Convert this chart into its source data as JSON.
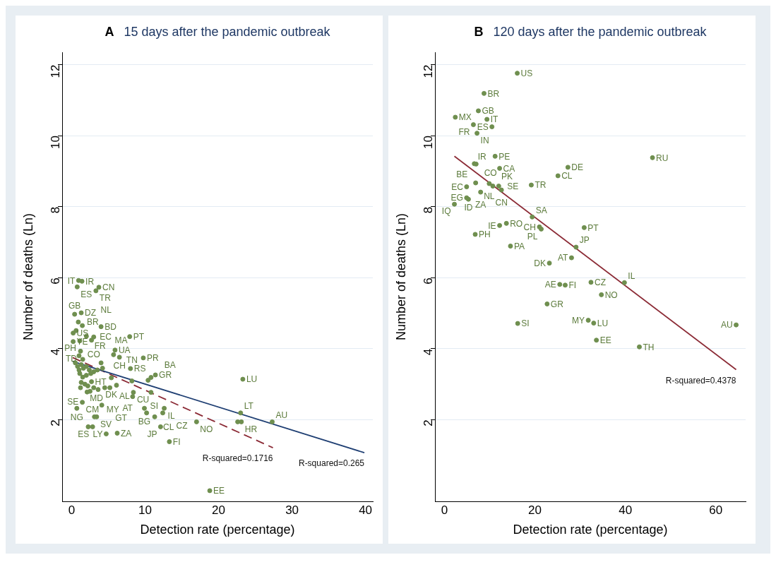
{
  "chart_data": [
    {
      "type": "scatter",
      "title": "15 days after the pandemic outbreak",
      "xlabel": "Detection rate (percentage)",
      "ylabel": "Number of deaths (Ln)",
      "xlim": [
        -1.3,
        41
      ],
      "ylim": [
        -0.3,
        12.35
      ],
      "xticks": [
        0,
        10,
        20,
        30,
        40
      ],
      "yticks": [
        2,
        4,
        6,
        8,
        10,
        12
      ],
      "grid": "y",
      "legend": false,
      "series": [
        {
          "type": "scatter",
          "color": "#6f8f4f",
          "marker": "circle",
          "x": [
            0.94,
            1.4,
            0.75,
            3.7,
            3.3,
            1.3,
            0.4,
            0.9,
            1.45,
            4.0,
            0.6,
            0.2,
            2.0,
            3.0,
            2.7,
            0.2,
            1.1,
            7.9,
            5.9,
            5.7,
            6.5,
            9.75,
            1.2,
            8.0,
            5.4,
            8.2,
            11.4,
            10.8,
            10.4,
            23.3,
            2.7,
            6.1,
            8.4,
            10.8,
            8.3,
            2.1,
            1.45,
            0.7,
            4.1,
            9.9,
            12.6,
            10.2,
            12.4,
            11.3,
            23.0,
            17.0,
            22.6,
            23.1,
            27.3,
            3.1,
            3.4,
            2.25,
            2.85,
            12.1,
            4.7,
            6.2,
            13.3,
            18.8,
            0.5,
            0.8,
            1.0,
            1.3,
            1.6,
            2.0,
            2.4,
            1.1,
            1.5,
            2.0,
            2.6,
            3.0,
            3.5,
            4.2,
            1.3,
            1.8,
            2.2,
            3.0,
            3.6,
            4.5,
            5.2,
            1.5,
            1.0,
            2.5,
            4.0,
            1.2
          ],
          "values": [
            5.92,
            5.9,
            5.74,
            5.73,
            5.63,
            5.01,
            4.97,
            4.75,
            4.65,
            4.62,
            4.51,
            4.44,
            4.35,
            4.33,
            4.24,
            4.2,
            4.22,
            4.34,
            3.96,
            3.83,
            3.76,
            3.74,
            3.93,
            3.44,
            3.18,
            3.09,
            3.26,
            3.19,
            3.11,
            3.14,
            3.07,
            2.97,
            2.77,
            2.77,
            2.65,
            2.78,
            2.49,
            2.32,
            2.41,
            2.32,
            2.32,
            2.19,
            2.19,
            2.08,
            2.19,
            1.94,
            1.94,
            1.94,
            1.94,
            2.08,
            2.08,
            1.8,
            1.8,
            1.8,
            1.6,
            1.62,
            1.38,
            0.0,
            3.6,
            3.5,
            3.4,
            3.55,
            3.45,
            3.5,
            3.4,
            3.3,
            3.2,
            3.25,
            3.3,
            3.35,
            3.4,
            3.45,
            3.05,
            3.0,
            2.95,
            2.9,
            2.85,
            2.9,
            2.9,
            3.7,
            3.8,
            2.8,
            3.6,
            2.9
          ]
        },
        {
          "type": "line",
          "color": "#1f3f73",
          "marker": "none",
          "line_style": "solid",
          "x": [
            0.14,
            39.85
          ],
          "values": [
            3.64,
            1.07
          ]
        },
        {
          "type": "line",
          "color": "#8b2a35",
          "marker": "none",
          "line_style": "dashed",
          "x": [
            0.14,
            27.4
          ],
          "values": [
            3.75,
            1.21
          ]
        }
      ],
      "annotations": [
        "A",
        {
          "text": "IT",
          "x": 0.94,
          "y": 5.92
        },
        {
          "text": "IR",
          "x": 1.4,
          "y": 5.9
        },
        {
          "text": "ES",
          "x": 0.75,
          "y": 5.74
        },
        {
          "text": "CN",
          "x": 3.7,
          "y": 5.73
        },
        {
          "text": "TR",
          "x": 3.3,
          "y": 5.63
        },
        {
          "text": "DZ",
          "x": 1.3,
          "y": 5.01
        },
        {
          "text": "GB",
          "x": 0.4,
          "y": 4.97
        },
        {
          "text": "BR",
          "x": 0.9,
          "y": 4.75
        },
        {
          "text": "NL",
          "x": 1.45,
          "y": 4.65
        },
        {
          "text": "BD",
          "x": 4.0,
          "y": 4.62
        },
        {
          "text": "FR",
          "x": 0.6,
          "y": 4.51
        },
        {
          "text": "US",
          "x": 0.2,
          "y": 4.44
        },
        {
          "text": "EC",
          "x": 2.0,
          "y": 4.35
        },
        {
          "text": "CO",
          "x": 3.0,
          "y": 4.33
        },
        {
          "text": "MA",
          "x": 2.7,
          "y": 4.24
        },
        {
          "text": "YE",
          "x": 0.2,
          "y": 4.2
        },
        {
          "text": "PH",
          "x": 1.1,
          "y": 4.22
        },
        {
          "text": "PT",
          "x": 7.9,
          "y": 4.34
        },
        {
          "text": "UA",
          "x": 5.9,
          "y": 3.96
        },
        {
          "text": "CH",
          "x": 6.5,
          "y": 3.76
        },
        {
          "text": "PR",
          "x": 9.75,
          "y": 3.74
        },
        {
          "text": "TD",
          "x": 1.2,
          "y": 3.93
        },
        {
          "text": "RS",
          "x": 8.0,
          "y": 3.44
        },
        {
          "text": "DK",
          "x": 5.4,
          "y": 3.18
        },
        {
          "text": "TN",
          "x": 8.2,
          "y": 3.09
        },
        {
          "text": "GR",
          "x": 11.4,
          "y": 3.26
        },
        {
          "text": "BA",
          "x": 10.8,
          "y": 3.19
        },
        {
          "text": "AL",
          "x": 10.4,
          "y": 3.11
        },
        {
          "text": "LU",
          "x": 23.3,
          "y": 3.14
        },
        {
          "text": "HT",
          "x": 2.7,
          "y": 3.07
        },
        {
          "text": "MD",
          "x": 6.1,
          "y": 2.97
        },
        {
          "text": "CU",
          "x": 8.4,
          "y": 2.77
        },
        {
          "text": "AT",
          "x": 10.8,
          "y": 2.77
        },
        {
          "text": "MY",
          "x": 8.3,
          "y": 2.65
        },
        {
          "text": "SE",
          "x": 2.1,
          "y": 2.78
        },
        {
          "text": "CM",
          "x": 1.45,
          "y": 2.49
        },
        {
          "text": "NG",
          "x": 0.7,
          "y": 2.32
        },
        {
          "text": "GT",
          "x": 4.1,
          "y": 2.41
        },
        {
          "text": "BG",
          "x": 9.9,
          "y": 2.32
        },
        {
          "text": "IL",
          "x": 12.6,
          "y": 2.32
        },
        {
          "text": "SI",
          "x": 10.2,
          "y": 2.19
        },
        {
          "text": "CZ",
          "x": 12.4,
          "y": 2.19
        },
        {
          "text": "CL",
          "x": 11.3,
          "y": 2.08
        },
        {
          "text": "LT",
          "x": 23.0,
          "y": 2.19
        },
        {
          "text": "NO",
          "x": 17.0,
          "y": 1.94
        },
        {
          "text": "HR",
          "x": 23.1,
          "y": 1.94
        },
        {
          "text": "AU",
          "x": 27.3,
          "y": 1.94
        },
        {
          "text": "SV",
          "x": 3.4,
          "y": 2.08
        },
        {
          "text": "ES",
          "x": 2.85,
          "y": 1.8
        },
        {
          "text": "JP",
          "x": 12.1,
          "y": 1.8
        },
        {
          "text": "LY",
          "x": 4.7,
          "y": 1.6
        },
        {
          "text": "ZA",
          "x": 6.2,
          "y": 1.62
        },
        {
          "text": "FI",
          "x": 13.3,
          "y": 1.38
        },
        {
          "text": "EE",
          "x": 18.8,
          "y": 0.0
        },
        {
          "text": "R-squared=0.1716",
          "x": 27.4,
          "y": 1.21
        },
        {
          "text": "R-squared=0.265",
          "x": 39.85,
          "y": 1.07
        }
      ]
    },
    {
      "type": "scatter",
      "title": "120 days after the pandemic outbreak",
      "xlabel": "Detection rate (percentage)",
      "ylabel": "Number of deaths (Ln)",
      "xlim": [
        -2.1,
        66.6
      ],
      "ylim": [
        -0.3,
        12.35
      ],
      "xticks": [
        0,
        20,
        40,
        60
      ],
      "yticks": [
        2,
        4,
        6,
        8,
        10,
        12
      ],
      "grid": "y",
      "legend": false,
      "series": [
        {
          "type": "scatter",
          "color": "#6f8f4f",
          "marker": "circle",
          "x": [
            16.1,
            8.75,
            7.5,
            2.4,
            9.4,
            6.4,
            10.5,
            7.2,
            11.2,
            46.0,
            6.6,
            7.0,
            12.2,
            27.3,
            25.1,
            6.9,
            9.9,
            4.9,
            10.7,
            12.0,
            12.6,
            8.0,
            19.2,
            4.9,
            5.3,
            2.2,
            19.4,
            13.7,
            12.2,
            21.0,
            21.4,
            30.9,
            6.8,
            14.6,
            29.1,
            28.1,
            23.2,
            25.5,
            26.7,
            32.4,
            39.8,
            34.7,
            22.7,
            16.2,
            31.8,
            33.0,
            64.5,
            33.6,
            43.1
          ],
          "values": [
            11.76,
            11.19,
            10.7,
            10.52,
            10.46,
            10.31,
            10.25,
            10.07,
            9.42,
            9.38,
            9.21,
            9.2,
            9.08,
            9.11,
            8.87,
            8.67,
            8.65,
            8.56,
            8.58,
            8.58,
            8.47,
            8.41,
            8.61,
            8.25,
            8.21,
            8.07,
            7.71,
            7.53,
            7.47,
            7.43,
            7.37,
            7.41,
            7.22,
            6.89,
            6.86,
            6.56,
            6.41,
            5.81,
            5.79,
            5.87,
            5.86,
            5.52,
            5.26,
            4.71,
            4.8,
            4.72,
            4.67,
            4.24,
            4.05
          ]
        },
        {
          "type": "line",
          "color": "#8b2a35",
          "marker": "none",
          "line_style": "solid",
          "x": [
            2.2,
            64.5
          ],
          "values": [
            9.42,
            3.41
          ]
        }
      ],
      "annotations": [
        "B",
        {
          "text": "US",
          "x": 16.1,
          "y": 11.76
        },
        {
          "text": "BR",
          "x": 8.75,
          "y": 11.19
        },
        {
          "text": "GB",
          "x": 7.5,
          "y": 10.7
        },
        {
          "text": "MX",
          "x": 2.4,
          "y": 10.52
        },
        {
          "text": "IT",
          "x": 9.4,
          "y": 10.46
        },
        {
          "text": "FR",
          "x": 6.4,
          "y": 10.31
        },
        {
          "text": "ES",
          "x": 10.5,
          "y": 10.25
        },
        {
          "text": "IN",
          "x": 7.2,
          "y": 10.07
        },
        {
          "text": "PE",
          "x": 11.2,
          "y": 9.42
        },
        {
          "text": "RU",
          "x": 46.0,
          "y": 9.38
        },
        {
          "text": "IR",
          "x": 6.6,
          "y": 9.21
        },
        {
          "text": "BE",
          "x": 7.0,
          "y": 9.2
        },
        {
          "text": "CA",
          "x": 12.2,
          "y": 9.08
        },
        {
          "text": "DE",
          "x": 27.3,
          "y": 9.11
        },
        {
          "text": "CL",
          "x": 25.1,
          "y": 8.87
        },
        {
          "text": "CO",
          "x": 6.9,
          "y": 8.67
        },
        {
          "text": "NL",
          "x": 9.9,
          "y": 8.65
        },
        {
          "text": "EC",
          "x": 4.9,
          "y": 8.56
        },
        {
          "text": "PK",
          "x": 10.7,
          "y": 8.58
        },
        {
          "text": "SE",
          "x": 12.0,
          "y": 8.58
        },
        {
          "text": "CN",
          "x": 12.6,
          "y": 8.47
        },
        {
          "text": "ZA",
          "x": 8.0,
          "y": 8.41
        },
        {
          "text": "TR",
          "x": 19.2,
          "y": 8.61
        },
        {
          "text": "EG",
          "x": 4.9,
          "y": 8.25
        },
        {
          "text": "ID",
          "x": 5.3,
          "y": 8.21
        },
        {
          "text": "IQ",
          "x": 2.2,
          "y": 8.07
        },
        {
          "text": "SA",
          "x": 19.4,
          "y": 7.71
        },
        {
          "text": "RO",
          "x": 13.7,
          "y": 7.53
        },
        {
          "text": "IE",
          "x": 12.2,
          "y": 7.47
        },
        {
          "text": "CH",
          "x": 21.0,
          "y": 7.43
        },
        {
          "text": "PL",
          "x": 21.4,
          "y": 7.37
        },
        {
          "text": "PT",
          "x": 30.9,
          "y": 7.41
        },
        {
          "text": "PH",
          "x": 6.8,
          "y": 7.22
        },
        {
          "text": "PA",
          "x": 14.6,
          "y": 6.89
        },
        {
          "text": "JP",
          "x": 29.1,
          "y": 6.86
        },
        {
          "text": "AT",
          "x": 28.1,
          "y": 6.56
        },
        {
          "text": "DK",
          "x": 23.2,
          "y": 6.41
        },
        {
          "text": "AE",
          "x": 25.5,
          "y": 5.81
        },
        {
          "text": "FI",
          "x": 26.7,
          "y": 5.79
        },
        {
          "text": "CZ",
          "x": 32.4,
          "y": 5.87
        },
        {
          "text": "IL",
          "x": 39.8,
          "y": 5.86
        },
        {
          "text": "NO",
          "x": 34.7,
          "y": 5.52
        },
        {
          "text": "GR",
          "x": 22.7,
          "y": 5.26
        },
        {
          "text": "SI",
          "x": 16.2,
          "y": 4.71
        },
        {
          "text": "MY",
          "x": 31.8,
          "y": 4.8
        },
        {
          "text": "LU",
          "x": 33.0,
          "y": 4.72
        },
        {
          "text": "AU",
          "x": 64.5,
          "y": 4.67
        },
        {
          "text": "EE",
          "x": 33.6,
          "y": 4.24
        },
        {
          "text": "TH",
          "x": 43.1,
          "y": 4.05
        },
        {
          "text": "R-squared=0.4378",
          "x": 64.5,
          "y": 3.41
        }
      ]
    }
  ]
}
